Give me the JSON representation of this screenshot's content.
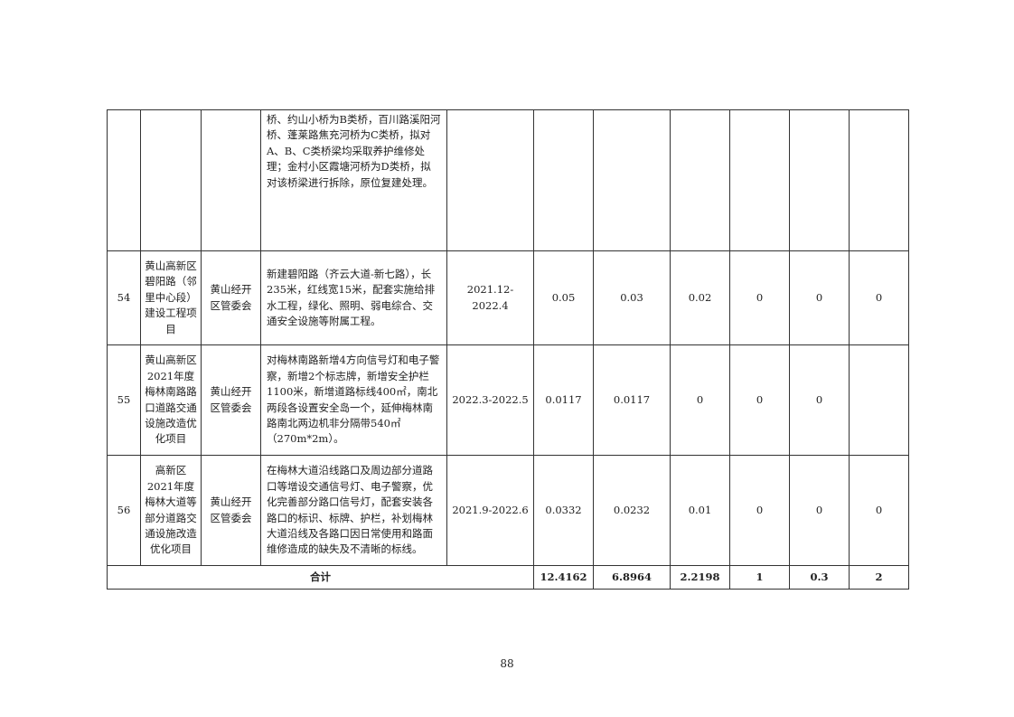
{
  "table": {
    "rows": [
      {
        "no": "",
        "name": "",
        "unit": "",
        "desc": "桥、约山小桥为B类桥，百川路溪阳河桥、蓬莱路焦充河桥为C类桥，拟对A、B、C类桥梁均采取养护维修处理；金村小区霞塘河桥为D类桥，拟对该桥梁进行拆除，原位复建处理。",
        "period": "",
        "v1": "",
        "v2": "",
        "v3": "",
        "v4": "",
        "v5": "",
        "v6": ""
      },
      {
        "no": "54",
        "name": "黄山高新区碧阳路（邻里中心段）建设工程项目",
        "unit": "黄山经开区管委会",
        "desc": "新建碧阳路（齐云大道-新七路），长235米，红线宽15米，配套实施给排水工程，绿化、照明、弱电综合、交通安全设施等附属工程。",
        "period": "2021.12-2022.4",
        "v1": "0.05",
        "v2": "0.03",
        "v3": "0.02",
        "v4": "0",
        "v5": "0",
        "v6": "0"
      },
      {
        "no": "55",
        "name": "黄山高新区2021年度梅林南路路口道路交通设施改造优化项目",
        "unit": "黄山经开区管委会",
        "desc": "对梅林南路新增4方向信号灯和电子警察，新增2个标志牌，新增安全护栏1100米，新增道路标线400㎡，南北两段各设置安全岛一个，延伸梅林南路南北两边机非分隔带540㎡（270m*2m）。",
        "period": "2022.3-2022.5",
        "v1": "0.0117",
        "v2": "0.0117",
        "v3": "0",
        "v4": "0",
        "v5": "0",
        "v6": ""
      },
      {
        "no": "56",
        "name": "高新区2021年度梅林大道等部分道路交通设施改造优化项目",
        "unit": "黄山经开区管委会",
        "desc": "在梅林大道沿线路口及周边部分道路口等增设交通信号灯、电子警察，优化完善部分路口信号灯，配套安装各路口的标识、标牌、护栏，补划梅林大道沿线及各路口因日常使用和路面维修造成的缺失及不清晰的标线。",
        "period": "2021.9-2022.6",
        "v1": "0.0332",
        "v2": "0.0232",
        "v3": "0.01",
        "v4": "0",
        "v5": "0",
        "v6": "0"
      }
    ],
    "total": {
      "label": "合计",
      "v1": "12.4162",
      "v2": "6.8964",
      "v3": "2.2198",
      "v4": "1",
      "v5": "0.3",
      "v6": "2"
    }
  },
  "page_number": "88"
}
